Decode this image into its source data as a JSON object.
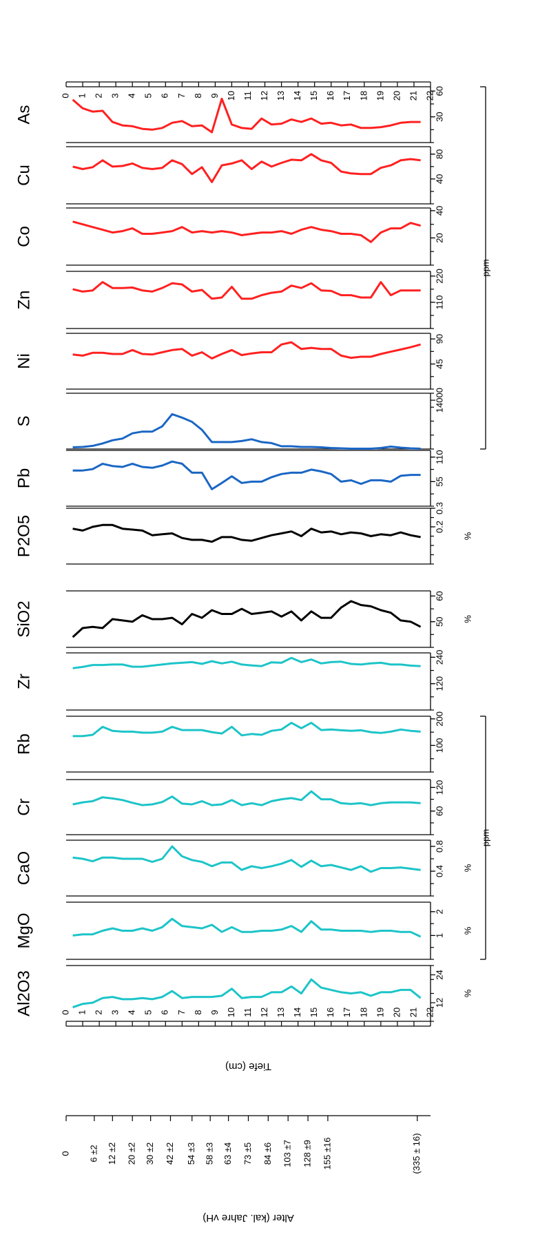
{
  "chart_data": {
    "type": "line",
    "orientation": "rotated-180",
    "depth_axis": {
      "label": "Tiefe (cm)",
      "range": [
        0,
        22
      ],
      "ticks": [
        0,
        1,
        2,
        3,
        4,
        5,
        6,
        7,
        8,
        9,
        10,
        11,
        12,
        13,
        14,
        15,
        16,
        17,
        18,
        19,
        20,
        21,
        22
      ]
    },
    "age_axis": {
      "label": "Alter (kal. Jahre vH)",
      "labels": [
        {
          "depth": 0,
          "text": "0"
        },
        {
          "depth": 1.7,
          "text": "6 ±2"
        },
        {
          "depth": 2.8,
          "text": "12 ±2"
        },
        {
          "depth": 4.0,
          "text": "20 ±2"
        },
        {
          "depth": 5.1,
          "text": "30 ±2"
        },
        {
          "depth": 6.3,
          "text": "42 ±2"
        },
        {
          "depth": 7.6,
          "text": "54 ±3"
        },
        {
          "depth": 8.7,
          "text": "58 ±3"
        },
        {
          "depth": 9.8,
          "text": "63 ±4"
        },
        {
          "depth": 11.0,
          "text": "73 ±5"
        },
        {
          "depth": 12.2,
          "text": "84 ±6"
        },
        {
          "depth": 13.4,
          "text": "103 ±7"
        },
        {
          "depth": 14.6,
          "text": "128 ±9"
        },
        {
          "depth": 15.8,
          "text": "155 ±16"
        },
        {
          "depth": 21.2,
          "text": "(335 ± 16)"
        }
      ]
    },
    "depth": [
      0.4,
      1.0,
      1.6,
      2.2,
      2.8,
      3.4,
      4.0,
      4.6,
      5.2,
      5.8,
      6.4,
      7.0,
      7.6,
      8.2,
      8.8,
      9.4,
      10.0,
      10.6,
      11.2,
      11.8,
      12.4,
      13.0,
      13.6,
      14.2,
      14.8,
      15.4,
      16.0,
      16.6,
      17.2,
      17.8,
      18.4,
      19.0,
      19.6,
      20.2,
      20.8,
      21.4
    ],
    "panels": [
      {
        "name": "Al2O3",
        "unit": "%",
        "color": "#1cc4c8",
        "range": [
          4,
          28
        ],
        "ticks": [
          12,
          24
        ],
        "values": [
          10,
          11.5,
          12,
          14,
          14.5,
          13.5,
          13.5,
          14,
          13.5,
          14.5,
          17,
          14,
          14.5,
          14.5,
          14.5,
          15,
          18,
          14,
          14.5,
          14.5,
          16.5,
          16.5,
          19,
          16,
          22,
          18.5,
          17.5,
          16.5,
          16,
          16.5,
          15,
          16.5,
          16.5,
          17.5,
          17.5,
          14
        ]
      },
      {
        "name": "MgO",
        "unit": "%",
        "color": "#1cc4c8",
        "range": [
          0,
          2.4
        ],
        "ticks": [
          1,
          2
        ],
        "values": [
          1.0,
          1.05,
          1.05,
          1.2,
          1.3,
          1.2,
          1.2,
          1.3,
          1.2,
          1.35,
          1.7,
          1.4,
          1.35,
          1.3,
          1.45,
          1.15,
          1.35,
          1.15,
          1.15,
          1.2,
          1.2,
          1.25,
          1.4,
          1.15,
          1.6,
          1.25,
          1.25,
          1.2,
          1.2,
          1.2,
          1.15,
          1.2,
          1.2,
          1.15,
          1.15,
          0.95
        ]
      },
      {
        "name": "CaO",
        "unit": "%",
        "color": "#1cc4c8",
        "range": [
          0,
          0.9
        ],
        "ticks": [
          0.4,
          0.8
        ],
        "values": [
          0.62,
          0.6,
          0.56,
          0.62,
          0.62,
          0.6,
          0.6,
          0.6,
          0.55,
          0.6,
          0.8,
          0.64,
          0.58,
          0.55,
          0.48,
          0.54,
          0.54,
          0.42,
          0.48,
          0.45,
          0.48,
          0.52,
          0.58,
          0.47,
          0.57,
          0.48,
          0.5,
          0.46,
          0.42,
          0.48,
          0.39,
          0.45,
          0.45,
          0.46,
          0.44,
          0.42
        ]
      },
      {
        "name": "Cr",
        "unit": "ppm",
        "color": "#1cc4c8",
        "range": [
          0,
          140
        ],
        "ticks": [
          60,
          120
        ],
        "values": [
          77,
          82,
          85,
          95,
          92,
          88,
          81,
          75,
          77,
          83,
          97,
          79,
          77,
          85,
          75,
          77,
          88,
          75,
          80,
          75,
          85,
          90,
          93,
          88,
          110,
          90,
          90,
          80,
          78,
          80,
          75,
          80,
          82,
          82,
          82,
          80
        ]
      },
      {
        "name": "Rb",
        "unit": "ppm",
        "color": "#1cc4c8",
        "range": [
          0,
          210
        ],
        "ticks": [
          100,
          200
        ],
        "values": [
          135,
          135,
          140,
          170,
          155,
          152,
          152,
          148,
          148,
          152,
          170,
          158,
          158,
          158,
          150,
          145,
          170,
          138,
          143,
          140,
          155,
          160,
          185,
          165,
          185,
          158,
          160,
          157,
          155,
          157,
          150,
          147,
          152,
          160,
          155,
          152
        ]
      },
      {
        "name": "Zr",
        "unit": "ppm",
        "color": "#1cc4c8",
        "range": [
          0,
          260
        ],
        "ticks": [
          120,
          240
        ],
        "values": [
          190,
          196,
          205,
          205,
          207,
          207,
          197,
          197,
          202,
          207,
          212,
          215,
          218,
          210,
          222,
          212,
          220,
          207,
          203,
          200,
          217,
          215,
          237,
          218,
          230,
          212,
          218,
          220,
          210,
          207,
          212,
          215,
          207,
          207,
          202,
          200
        ]
      },
      {
        "name": "SiO2",
        "unit": "%",
        "color": "#000000",
        "range": [
          40,
          62
        ],
        "ticks": [
          50,
          60
        ],
        "values": [
          44,
          47.5,
          48,
          47.5,
          51,
          50.5,
          50,
          52.5,
          51,
          51,
          51.5,
          49,
          53,
          51.5,
          54.5,
          53,
          53,
          55,
          53,
          53.5,
          54,
          52,
          54,
          50.5,
          54,
          51.5,
          51.5,
          55.5,
          58,
          56.5,
          56,
          54.5,
          53.5,
          50.5,
          50,
          48
        ]
      },
      {
        "name": "P2O5",
        "unit": "%",
        "color": "#000000",
        "range": [
          0,
          0.3
        ],
        "ticks": [
          0.2,
          0.3
        ],
        "values": [
          0.19,
          0.18,
          0.2,
          0.21,
          0.21,
          0.19,
          0.185,
          0.18,
          0.155,
          0.16,
          0.165,
          0.14,
          0.13,
          0.13,
          0.12,
          0.145,
          0.145,
          0.13,
          0.125,
          0.14,
          0.155,
          0.165,
          0.175,
          0.15,
          0.19,
          0.17,
          0.175,
          0.16,
          0.17,
          0.165,
          0.15,
          0.16,
          0.155,
          0.17,
          0.155,
          0.145
        ]
      },
      {
        "name": "Pb",
        "unit": "ppm",
        "color": "#1a66c4",
        "range": [
          0,
          125
        ],
        "ticks": [
          55,
          110
        ],
        "values": [
          80,
          80,
          83,
          95,
          90,
          88,
          95,
          88,
          86,
          91,
          100,
          95,
          75,
          75,
          38,
          52,
          67,
          52,
          55,
          55,
          65,
          72,
          75,
          75,
          82,
          78,
          72,
          55,
          58,
          50,
          58,
          58,
          55,
          68,
          70,
          70
        ]
      },
      {
        "name": "S",
        "unit": "ppm",
        "color": "#1a66c4",
        "range": [
          0,
          16000
        ],
        "ticks": [
          14000
        ],
        "values": [
          500,
          600,
          900,
          1600,
          2500,
          3000,
          4500,
          5000,
          5000,
          6500,
          10000,
          9000,
          7800,
          5500,
          2000,
          2000,
          2000,
          2300,
          2800,
          2000,
          1700,
          800,
          800,
          600,
          600,
          500,
          300,
          200,
          100,
          100,
          100,
          300,
          700,
          400,
          200,
          100
        ]
      },
      {
        "name": "Ni",
        "unit": "ppm",
        "color": "#ff2020",
        "range": [
          0,
          100
        ],
        "ticks": [
          45,
          90
        ],
        "values": [
          62,
          60,
          65,
          65,
          63,
          63,
          70,
          63,
          62,
          66,
          70,
          72,
          60,
          66,
          55,
          63,
          70,
          61,
          64,
          66,
          66,
          80,
          84,
          72,
          74,
          72,
          72,
          60,
          56,
          58,
          58,
          63,
          67,
          71,
          75,
          80
        ]
      },
      {
        "name": "Zn",
        "unit": "ppm",
        "color": "#ff2020",
        "range": [
          0,
          240
        ],
        "ticks": [
          110,
          220
        ],
        "values": [
          165,
          155,
          160,
          195,
          170,
          170,
          172,
          160,
          155,
          170,
          190,
          185,
          155,
          162,
          125,
          130,
          175,
          125,
          125,
          140,
          150,
          155,
          180,
          170,
          190,
          160,
          158,
          140,
          140,
          130,
          130,
          195,
          140,
          160,
          160,
          160
        ]
      },
      {
        "name": "Co",
        "unit": "ppm",
        "color": "#ff2020",
        "range": [
          0,
          42
        ],
        "ticks": [
          20,
          40
        ],
        "values": [
          32,
          30,
          28,
          26,
          24,
          25,
          27,
          23,
          23,
          24,
          25,
          28,
          24,
          25,
          24,
          25,
          24,
          22,
          23,
          24,
          24,
          25,
          23,
          26,
          28,
          26,
          25,
          23,
          23,
          22,
          17,
          24,
          27,
          27,
          31,
          29
        ]
      },
      {
        "name": "Cu",
        "unit": "ppm",
        "color": "#ff2020",
        "range": [
          0,
          92
        ],
        "ticks": [
          40,
          80
        ],
        "values": [
          60,
          56,
          59,
          70,
          60,
          61,
          65,
          58,
          56,
          58,
          70,
          64,
          48,
          59,
          35,
          62,
          65,
          70,
          56,
          68,
          60,
          66,
          71,
          70,
          80,
          70,
          66,
          52,
          49,
          48,
          48,
          58,
          62,
          70,
          72,
          70
        ]
      },
      {
        "name": "As",
        "unit": "ppm",
        "color": "#ff2020",
        "range": [
          0,
          65
        ],
        "ticks": [
          30,
          60
        ],
        "values": [
          50,
          40,
          36,
          37,
          24,
          20,
          19,
          16,
          15,
          17,
          23,
          25,
          19,
          20,
          12,
          51,
          21,
          17,
          16,
          28,
          21,
          22,
          27,
          24,
          28,
          22,
          23,
          20,
          21,
          17,
          17,
          18,
          20,
          23,
          24,
          24
        ]
      }
    ],
    "group_labels": [
      {
        "text": "ppm"
      },
      {
        "text": "ppm"
      }
    ]
  }
}
